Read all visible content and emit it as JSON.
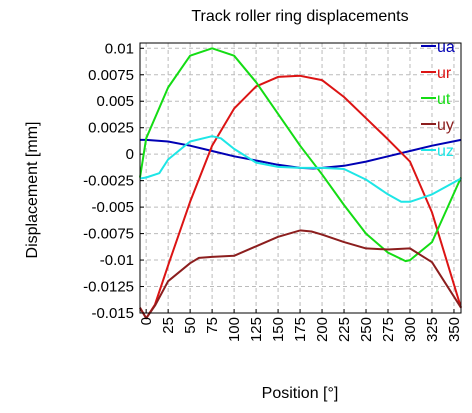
{
  "chart_data": {
    "type": "line",
    "title": "Track roller ring displacements",
    "xlabel": "Position [°]",
    "ylabel": "Displacement [mm]",
    "xlim": [
      -7,
      358
    ],
    "ylim": [
      -0.015,
      0.0105
    ],
    "grid": true,
    "legend_position": "top-right",
    "x_ticks": [
      0,
      25,
      50,
      75,
      100,
      125,
      150,
      175,
      200,
      225,
      250,
      275,
      300,
      325,
      350
    ],
    "x_tick_labels": [
      "0",
      "25",
      "50",
      "75",
      "100",
      "125",
      "150",
      "175",
      "200",
      "225",
      "250",
      "275",
      "300",
      "325",
      "350"
    ],
    "y_ticks": [
      0.01,
      0.0075,
      0.005,
      0.0025,
      0,
      -0.0025,
      -0.005,
      -0.0075,
      -0.01,
      -0.0125,
      -0.015
    ],
    "y_tick_labels": [
      "0.01",
      "0.0075",
      "0.005",
      "0.0025",
      "0",
      "-0.0025",
      "-0.005",
      "-0.0075",
      "-0.01",
      "-0.0125",
      "-0.015"
    ],
    "series": [
      {
        "name": "ua",
        "color": "#0000b4",
        "x": [
          -7,
          0,
          25,
          50,
          75,
          100,
          125,
          150,
          175,
          190,
          200,
          225,
          250,
          275,
          300,
          325,
          358
        ],
        "y": [
          0.00135,
          0.00135,
          0.0012,
          0.0008,
          0.0003,
          -0.0002,
          -0.0006,
          -0.001,
          -0.0013,
          -0.00135,
          -0.0013,
          -0.0011,
          -0.0007,
          -0.0002,
          0.0003,
          0.0008,
          0.00135
        ]
      },
      {
        "name": "ur",
        "color": "#dc1414",
        "x": [
          -7,
          0,
          10,
          25,
          50,
          75,
          100,
          125,
          150,
          175,
          200,
          225,
          250,
          275,
          300,
          325,
          358
        ],
        "y": [
          -0.0145,
          -0.0155,
          -0.0142,
          -0.0105,
          -0.0045,
          0.0008,
          0.0043,
          0.0064,
          0.0073,
          0.0074,
          0.007,
          0.0054,
          0.0034,
          0.0014,
          -0.0007,
          -0.0055,
          -0.0145
        ]
      },
      {
        "name": "ut",
        "color": "#14dc14",
        "x": [
          -7,
          0,
          25,
          50,
          75,
          100,
          125,
          150,
          175,
          200,
          225,
          250,
          275,
          295,
          300,
          325,
          358
        ],
        "y": [
          -0.0022,
          0.0015,
          0.0063,
          0.0093,
          0.01,
          0.0093,
          0.0068,
          0.0038,
          0.0008,
          -0.0019,
          -0.0048,
          -0.0075,
          -0.0093,
          -0.0101,
          -0.01,
          -0.0083,
          -0.0022
        ]
      },
      {
        "name": "uy",
        "color": "#8c1e1e",
        "x": [
          -7,
          0,
          10,
          25,
          50,
          60,
          75,
          100,
          125,
          150,
          175,
          188,
          200,
          225,
          250,
          275,
          300,
          325,
          358
        ],
        "y": [
          -0.0145,
          -0.0155,
          -0.0143,
          -0.012,
          -0.0103,
          -0.0098,
          -0.0097,
          -0.0096,
          -0.0087,
          -0.0078,
          -0.0072,
          -0.0073,
          -0.0076,
          -0.0083,
          -0.0089,
          -0.009,
          -0.0089,
          -0.0102,
          -0.0145
        ]
      },
      {
        "name": "uz",
        "color": "#1ee6e6",
        "x": [
          -7,
          0,
          15,
          25,
          50,
          75,
          85,
          100,
          125,
          150,
          175,
          200,
          225,
          250,
          275,
          290,
          300,
          325,
          358
        ],
        "y": [
          -0.0023,
          -0.0022,
          -0.0018,
          -0.0005,
          0.0012,
          0.0017,
          0.0015,
          0.0005,
          -0.0008,
          -0.0012,
          -0.0013,
          -0.0013,
          -0.0014,
          -0.0024,
          -0.0038,
          -0.0045,
          -0.0045,
          -0.0038,
          -0.0023
        ]
      }
    ]
  }
}
